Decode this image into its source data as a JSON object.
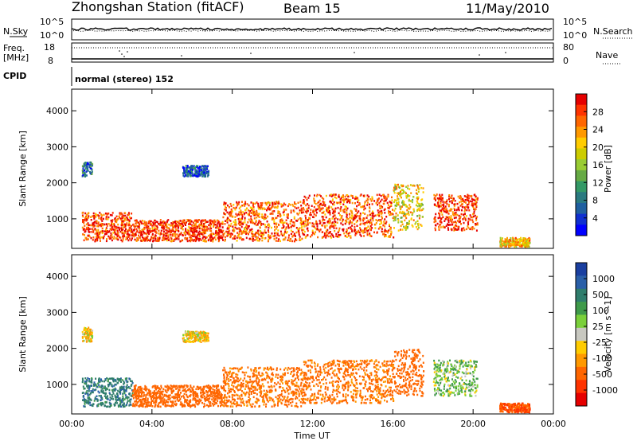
{
  "header": {
    "station_title": "Zhongshan Station (fitACF)",
    "beam": "Beam 15",
    "date": "11/May/2010"
  },
  "top_panel": {
    "left_label": "N.Sky",
    "right_label": "N.Search",
    "left_ticks": [
      "10^5",
      "10^0"
    ],
    "right_ticks": [
      "10^5",
      "10^0"
    ]
  },
  "freq_panel": {
    "left_label_1": "Freq.",
    "left_label_2": "[MHz]",
    "right_label": "Nave",
    "left_ticks": [
      "18",
      "8"
    ],
    "right_ticks": [
      "80",
      "0"
    ]
  },
  "cpid": {
    "label": "CPID",
    "mode": "normal (stereo) 152"
  },
  "y_axis": {
    "label": "Slant Range [km]",
    "ticks": [
      "4000",
      "3000",
      "2000",
      "1000"
    ]
  },
  "x_axis": {
    "label": "Time UT",
    "ticks": [
      "00:00",
      "04:00",
      "08:00",
      "12:00",
      "16:00",
      "20:00",
      "00:00"
    ]
  },
  "power_colorbar": {
    "label": "Power [dB]",
    "ticks": [
      "28",
      "24",
      "20",
      "16",
      "12",
      "8",
      "4"
    ],
    "colors": [
      "#e60000",
      "#ff3300",
      "#ff6600",
      "#ff9900",
      "#ffcc00",
      "#cccc00",
      "#99cc33",
      "#66aa44",
      "#339966",
      "#2a7a80",
      "#1f5fa0",
      "#1030d0",
      "#0000ff"
    ]
  },
  "velocity_colorbar": {
    "label": "Velocity [m s^-1]",
    "ticks": [
      "1000",
      "500",
      "100",
      "25",
      "-25",
      "-100",
      "-500",
      "-1000"
    ],
    "colors": [
      "#1a3fa0",
      "#2a5fa8",
      "#2f7d6c",
      "#3f9a4a",
      "#7ad03a",
      "#c8c8c0",
      "#ffcc00",
      "#ff9900",
      "#ff6600",
      "#ff3300",
      "#e60000"
    ]
  },
  "chart_data": {
    "type": "heatmap",
    "x_range_hours": [
      0,
      24
    ],
    "y_range_km": [
      180,
      4600
    ],
    "panels": [
      "Power",
      "Velocity"
    ],
    "echo_regions": [
      {
        "t_start": 0.5,
        "t_end": 3.0,
        "r_min": 400,
        "r_max": 1200,
        "power_db": 26,
        "velocity_ms": 400
      },
      {
        "t_start": 3.0,
        "t_end": 7.5,
        "r_min": 400,
        "r_max": 1000,
        "power_db": 26,
        "velocity_ms": -200
      },
      {
        "t_start": 7.5,
        "t_end": 11.5,
        "r_min": 400,
        "r_max": 1500,
        "power_db": 24,
        "velocity_ms": -150
      },
      {
        "t_start": 11.5,
        "t_end": 16.0,
        "r_min": 500,
        "r_max": 1700,
        "power_db": 25,
        "velocity_ms": -150
      },
      {
        "t_start": 16.0,
        "t_end": 17.5,
        "r_min": 700,
        "r_max": 2000,
        "power_db": 18,
        "velocity_ms": -200
      },
      {
        "t_start": 18.0,
        "t_end": 20.2,
        "r_min": 700,
        "r_max": 1700,
        "power_db": 26,
        "velocity_ms": 100
      },
      {
        "t_start": 21.3,
        "t_end": 22.8,
        "r_min": 250,
        "r_max": 500,
        "power_db": 20,
        "velocity_ms": -300
      },
      {
        "t_start": 0.5,
        "t_end": 1.0,
        "r_min": 2200,
        "r_max": 2600,
        "power_db": 8,
        "velocity_ms": 0
      },
      {
        "t_start": 5.5,
        "t_end": 6.8,
        "r_min": 2200,
        "r_max": 2500,
        "power_db": 6,
        "velocity_ms": 0
      }
    ]
  }
}
